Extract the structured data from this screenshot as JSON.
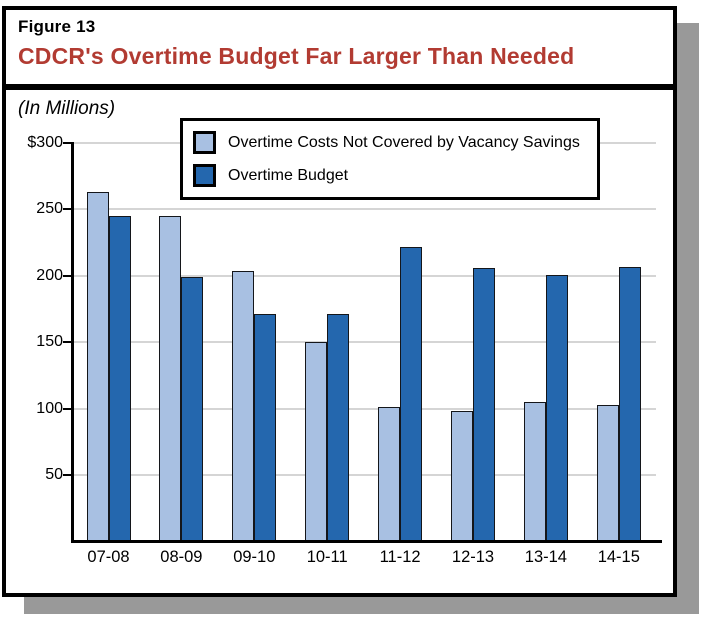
{
  "figure": {
    "label": "Figure 13",
    "title": "CDCR's Overtime Budget Far Larger Than Needed",
    "units": "(In Millions)"
  },
  "chart_data": {
    "type": "bar",
    "title": "CDCR's Overtime Budget Far Larger Than Needed",
    "units_note": "(In Millions)",
    "categories": [
      "07-08",
      "08-09",
      "09-10",
      "10-11",
      "11-12",
      "12-13",
      "13-14",
      "14-15"
    ],
    "series": [
      {
        "name": "Overtime Costs Not Covered by Vacancy Savings",
        "color": "#a8c0e2",
        "values": [
          263,
          245,
          204,
          150,
          101,
          98,
          105,
          103
        ]
      },
      {
        "name": "Overtime Budget",
        "color": "#2467ae",
        "values": [
          245,
          199,
          171,
          171,
          222,
          206,
          201,
          207
        ]
      }
    ],
    "ylim": [
      0,
      300
    ],
    "yticks": [
      {
        "label": "$300",
        "value": 300
      },
      {
        "label": "250",
        "value": 250
      },
      {
        "label": "200",
        "value": 200
      },
      {
        "label": "150",
        "value": 150
      },
      {
        "label": "100",
        "value": 100
      },
      {
        "label": "50",
        "value": 50
      }
    ],
    "grid": true,
    "legend_position": "top-center",
    "xlabel": "",
    "ylabel": ""
  },
  "colors": {
    "title_red": "#b23b32",
    "gridline": "#d5d5d5",
    "bar_outline": "#14161a",
    "shadow": "#999999",
    "axis": "#000000"
  }
}
